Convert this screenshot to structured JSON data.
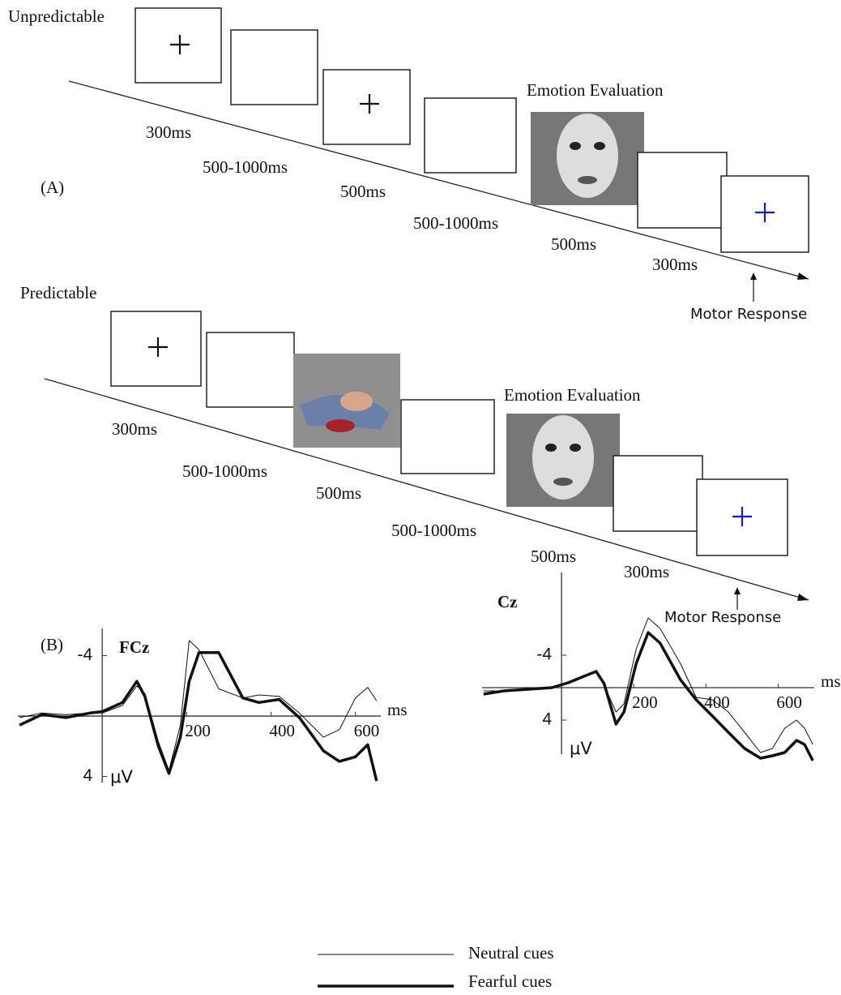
{
  "panel_a": {
    "label": "(A)",
    "sequences": [
      {
        "title": "Unpredictable",
        "durations": [
          "300ms",
          "500-1000ms",
          "500ms",
          "500-1000ms",
          "500ms",
          "300ms"
        ],
        "evaluation": "Emotion Evaluation",
        "response": "Motor Response"
      },
      {
        "title": "Predictable",
        "durations": [
          "300ms",
          "500-1000ms",
          "500ms",
          "500-1000ms",
          "500ms",
          "300ms"
        ],
        "evaluation": "Emotion Evaluation",
        "response": "Motor Response"
      }
    ]
  },
  "panel_b": {
    "label": "(B)"
  },
  "chart_data": [
    {
      "type": "line",
      "title": "FCz",
      "x_label": "ms",
      "y_label": "μV",
      "x": [
        -196,
        -143,
        -86,
        -29,
        0,
        48,
        82,
        101,
        133,
        158,
        185,
        206,
        229,
        276,
        333,
        371,
        419,
        467,
        524,
        562,
        600,
        629,
        650
      ],
      "series": [
        {
          "name": "Neutral cues",
          "color": "#111111",
          "line_width": 1,
          "values": [
            0.1,
            -0.2,
            -0.1,
            -0.2,
            -0.2,
            -0.7,
            -2.0,
            -1.5,
            1.7,
            3.6,
            0.6,
            -5.0,
            -4.4,
            -1.8,
            -1.2,
            -1.4,
            -1.3,
            -0.2,
            1.4,
            0.9,
            -1.2,
            -1.9,
            -1.0
          ]
        },
        {
          "name": "Fearful  cues",
          "color": "#111111",
          "line_width": 3.5,
          "values": [
            0.6,
            -0.1,
            0.1,
            -0.2,
            -0.3,
            -0.9,
            -2.3,
            -1.3,
            2.0,
            3.8,
            1.4,
            -2.3,
            -4.2,
            -4.2,
            -1.2,
            -0.9,
            -1.1,
            0.1,
            2.3,
            3.0,
            2.7,
            1.9,
            4.3
          ]
        }
      ],
      "xlim": [
        -200,
        660
      ],
      "xticks": [
        200,
        400,
        600
      ],
      "ylim": [
        4.4,
        -5.8
      ],
      "yticks": [
        -4,
        4
      ]
    },
    {
      "type": "line",
      "title": "Cz",
      "x_label": "ms",
      "y_label": "μV",
      "x": [
        -216,
        -160,
        -93,
        -27,
        18,
        62,
        96,
        118,
        151,
        173,
        207,
        240,
        273,
        329,
        373,
        418,
        462,
        507,
        551,
        584,
        618,
        651,
        673,
        696
      ],
      "series": [
        {
          "name": "Neutral cues",
          "color": "#111111",
          "line_width": 1,
          "values": [
            0.4,
            0.4,
            0.2,
            0,
            -0.5,
            -1.3,
            -2.1,
            -0.3,
            3.0,
            2.0,
            -4.8,
            -8.6,
            -7.3,
            -3.0,
            1.2,
            1.5,
            3.0,
            5.5,
            8.0,
            7.5,
            5.0,
            4.0,
            5.0,
            7.0
          ]
        },
        {
          "name": "Fearful  cues",
          "color": "#111111",
          "line_width": 3.5,
          "values": [
            0.8,
            0.4,
            0.2,
            0,
            -0.6,
            -1.4,
            -2.0,
            -0.5,
            4.5,
            3.0,
            -3.0,
            -6.8,
            -5.5,
            -1.0,
            1.5,
            3.5,
            5.5,
            7.5,
            8.7,
            8.4,
            8.0,
            6.5,
            7.0,
            9.0
          ]
        }
      ],
      "xlim": [
        -220,
        700
      ],
      "xticks": [
        200,
        400,
        600
      ],
      "ylim": [
        8.2,
        -14.2
      ],
      "yticks": [
        -4,
        4
      ]
    }
  ]
}
